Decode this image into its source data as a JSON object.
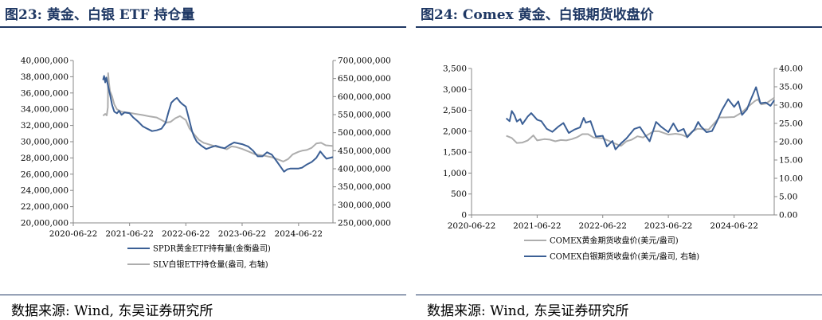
{
  "colors": {
    "title": "#1f3864",
    "gold": "#adadad",
    "silver": "#3b5f95"
  },
  "left": {
    "title": "图23: 黄金、白银 ETF 持仓量",
    "source": "数据来源: Wind, 东吴证券研究所",
    "legend": [
      "SPDR黄金ETF持有量(金衡盎司)",
      "SLV白银ETF持仓量(盎司, 右轴)"
    ],
    "x_ticks": [
      "2020-06-22",
      "2021-06-22",
      "2022-06-22",
      "2023-06-22",
      "2024-06-22"
    ],
    "y_ticks": [
      "20,000,000",
      "22,000,000",
      "24,000,000",
      "26,000,000",
      "28,000,000",
      "30,000,000",
      "32,000,000",
      "34,000,000",
      "36,000,000",
      "38,000,000",
      "40,000,000"
    ],
    "y2_ticks": [
      "250,000,000",
      "300,000,000",
      "350,000,000",
      "400,000,000",
      "450,000,000",
      "500,000,000",
      "550,000,000",
      "600,000,000",
      "650,000,000",
      "700,000,000"
    ]
  },
  "right": {
    "title": "图24: Comex 黄金、白银期货收盘价",
    "source": "数据来源: Wind, 东吴证券研究所",
    "legend": [
      "COMEX黄金期货收盘价(美元/盎司)",
      "COMEX白银期货收盘价(美元/盎司, 右轴)"
    ],
    "x_ticks": [
      "2020-06-22",
      "2021-06-22",
      "2022-06-22",
      "2023-06-22",
      "2024-06-22"
    ],
    "y_ticks": [
      "0",
      "500",
      "1,000",
      "1,500",
      "2,000",
      "2,500",
      "3,000",
      "3,500"
    ],
    "y2_ticks": [
      "0.00",
      "5.00",
      "10.00",
      "15.00",
      "20.00",
      "25.00",
      "30.00",
      "35.00",
      "40.00"
    ]
  },
  "chart_data": [
    {
      "type": "line",
      "title": "图23: 黄金、白银 ETF 持仓量",
      "x_range": [
        "2020-06-22",
        "2025-01-31"
      ],
      "ylim": [
        20000000,
        40000000
      ],
      "y2lim": [
        250000000,
        700000000
      ],
      "series": [
        {
          "name": "SPDR黄金ETF持有量(金衡盎司)",
          "axis": "left",
          "color": "#3b5f95",
          "points": [
            [
              "2021-01-01",
              37600000
            ],
            [
              "2021-01-08",
              38100000
            ],
            [
              "2021-01-15",
              37300000
            ],
            [
              "2021-01-22",
              37900000
            ],
            [
              "2021-02-01",
              37000000
            ],
            [
              "2021-02-15",
              35800000
            ],
            [
              "2021-03-01",
              34500000
            ],
            [
              "2021-03-15",
              33700000
            ],
            [
              "2021-04-01",
              33500000
            ],
            [
              "2021-04-15",
              33800000
            ],
            [
              "2021-05-01",
              33300000
            ],
            [
              "2021-05-20",
              33600000
            ],
            [
              "2021-06-22",
              33500000
            ],
            [
              "2021-07-15",
              33000000
            ],
            [
              "2021-08-15",
              32500000
            ],
            [
              "2021-09-15",
              31900000
            ],
            [
              "2021-10-15",
              31600000
            ],
            [
              "2021-11-15",
              31300000
            ],
            [
              "2021-12-15",
              31400000
            ],
            [
              "2022-01-15",
              31600000
            ],
            [
              "2022-02-10",
              32300000
            ],
            [
              "2022-03-01",
              33600000
            ],
            [
              "2022-03-20",
              34800000
            ],
            [
              "2022-04-10",
              35200000
            ],
            [
              "2022-04-25",
              35400000
            ],
            [
              "2022-05-15",
              34900000
            ],
            [
              "2022-06-01",
              34600000
            ],
            [
              "2022-06-22",
              34300000
            ],
            [
              "2022-07-15",
              32600000
            ],
            [
              "2022-08-01",
              31300000
            ],
            [
              "2022-08-15",
              30600000
            ],
            [
              "2022-09-01",
              30000000
            ],
            [
              "2022-10-01",
              29500000
            ],
            [
              "2022-11-01",
              29100000
            ],
            [
              "2022-12-01",
              29300000
            ],
            [
              "2023-01-01",
              29500000
            ],
            [
              "2023-02-01",
              29300000
            ],
            [
              "2023-03-01",
              29200000
            ],
            [
              "2023-04-01",
              29600000
            ],
            [
              "2023-05-01",
              29900000
            ],
            [
              "2023-06-22",
              29700000
            ],
            [
              "2023-08-01",
              29400000
            ],
            [
              "2023-09-01",
              28900000
            ],
            [
              "2023-10-01",
              28200000
            ],
            [
              "2023-11-01",
              28200000
            ],
            [
              "2023-12-01",
              28700000
            ],
            [
              "2024-01-01",
              28400000
            ],
            [
              "2024-02-01",
              27600000
            ],
            [
              "2024-03-01",
              26800000
            ],
            [
              "2024-03-20",
              26300000
            ],
            [
              "2024-04-10",
              26600000
            ],
            [
              "2024-05-01",
              26700000
            ],
            [
              "2024-06-22",
              26700000
            ],
            [
              "2024-07-15",
              26800000
            ],
            [
              "2024-08-15",
              27200000
            ],
            [
              "2024-09-15",
              27500000
            ],
            [
              "2024-10-15",
              28000000
            ],
            [
              "2024-11-10",
              28800000
            ],
            [
              "2024-12-01",
              28300000
            ],
            [
              "2024-12-20",
              27900000
            ],
            [
              "2025-01-31",
              28100000
            ]
          ]
        },
        {
          "name": "SLV白银ETF持仓量(盎司, 右轴)",
          "axis": "right",
          "color": "#adadad",
          "points": [
            [
              "2021-01-01",
              547000000
            ],
            [
              "2021-01-15",
              552000000
            ],
            [
              "2021-01-25",
              548000000
            ],
            [
              "2021-02-01",
              570000000
            ],
            [
              "2021-02-03",
              665000000
            ],
            [
              "2021-02-08",
              640000000
            ],
            [
              "2021-02-15",
              615000000
            ],
            [
              "2021-03-01",
              600000000
            ],
            [
              "2021-03-15",
              578000000
            ],
            [
              "2021-04-01",
              565000000
            ],
            [
              "2021-05-01",
              558000000
            ],
            [
              "2021-06-22",
              555000000
            ],
            [
              "2021-08-01",
              552000000
            ],
            [
              "2021-09-15",
              549000000
            ],
            [
              "2021-11-01",
              545000000
            ],
            [
              "2021-12-15",
              542000000
            ],
            [
              "2022-01-15",
              535000000
            ],
            [
              "2022-02-15",
              528000000
            ],
            [
              "2022-03-15",
              530000000
            ],
            [
              "2022-04-15",
              540000000
            ],
            [
              "2022-05-15",
              546000000
            ],
            [
              "2022-06-22",
              535000000
            ],
            [
              "2022-07-15",
              512000000
            ],
            [
              "2022-08-15",
              495000000
            ],
            [
              "2022-09-15",
              480000000
            ],
            [
              "2022-10-15",
              472000000
            ],
            [
              "2022-11-15",
              468000000
            ],
            [
              "2022-12-15",
              464000000
            ],
            [
              "2023-01-15",
              460000000
            ],
            [
              "2023-02-15",
              458000000
            ],
            [
              "2023-03-15",
              454000000
            ],
            [
              "2023-04-15",
              462000000
            ],
            [
              "2023-05-15",
              460000000
            ],
            [
              "2023-06-22",
              455000000
            ],
            [
              "2023-08-01",
              448000000
            ],
            [
              "2023-09-15",
              440000000
            ],
            [
              "2023-11-01",
              437000000
            ],
            [
              "2024-01-01",
              432000000
            ],
            [
              "2024-02-15",
              425000000
            ],
            [
              "2024-03-15",
              420000000
            ],
            [
              "2024-04-15",
              427000000
            ],
            [
              "2024-05-15",
              440000000
            ],
            [
              "2024-06-22",
              447000000
            ],
            [
              "2024-07-15",
              450000000
            ],
            [
              "2024-08-15",
              452000000
            ],
            [
              "2024-09-15",
              458000000
            ],
            [
              "2024-10-15",
              470000000
            ],
            [
              "2024-11-15",
              472000000
            ],
            [
              "2024-12-15",
              465000000
            ],
            [
              "2025-01-31",
              463000000
            ]
          ]
        }
      ]
    },
    {
      "type": "line",
      "title": "图24: Comex 黄金、白银期货收盘价",
      "x_range": [
        "2020-06-22",
        "2025-01-31"
      ],
      "ylim": [
        0,
        3500
      ],
      "y2lim": [
        0,
        40
      ],
      "series": [
        {
          "name": "COMEX黄金期货收盘价(美元/盎司)",
          "axis": "left",
          "color": "#adadad",
          "points": [
            [
              "2021-01-01",
              1890
            ],
            [
              "2021-02-01",
              1840
            ],
            [
              "2021-03-01",
              1720
            ],
            [
              "2021-04-01",
              1730
            ],
            [
              "2021-05-01",
              1780
            ],
            [
              "2021-06-01",
              1900
            ],
            [
              "2021-06-22",
              1780
            ],
            [
              "2021-08-01",
              1810
            ],
            [
              "2021-09-01",
              1800
            ],
            [
              "2021-10-01",
              1760
            ],
            [
              "2021-11-01",
              1790
            ],
            [
              "2021-12-01",
              1780
            ],
            [
              "2022-01-01",
              1810
            ],
            [
              "2022-02-01",
              1860
            ],
            [
              "2022-03-01",
              1930
            ],
            [
              "2022-04-01",
              1930
            ],
            [
              "2022-05-01",
              1850
            ],
            [
              "2022-06-22",
              1830
            ],
            [
              "2022-08-01",
              1760
            ],
            [
              "2022-09-01",
              1700
            ],
            [
              "2022-10-01",
              1650
            ],
            [
              "2022-11-01",
              1760
            ],
            [
              "2022-12-01",
              1800
            ],
            [
              "2023-01-01",
              1880
            ],
            [
              "2023-02-01",
              1850
            ],
            [
              "2023-03-01",
              1920
            ],
            [
              "2023-04-01",
              2000
            ],
            [
              "2023-05-01",
              2000
            ],
            [
              "2023-06-22",
              1920
            ],
            [
              "2023-08-01",
              1940
            ],
            [
              "2023-09-01",
              1920
            ],
            [
              "2023-10-01",
              1870
            ],
            [
              "2023-11-01",
              1990
            ],
            [
              "2023-12-01",
              2060
            ],
            [
              "2024-01-01",
              2050
            ],
            [
              "2024-02-01",
              2040
            ],
            [
              "2024-03-01",
              2180
            ],
            [
              "2024-04-01",
              2330
            ],
            [
              "2024-05-01",
              2330
            ],
            [
              "2024-06-22",
              2340
            ],
            [
              "2024-08-01",
              2440
            ],
            [
              "2024-09-01",
              2560
            ],
            [
              "2024-10-15",
              2720
            ],
            [
              "2024-11-01",
              2760
            ],
            [
              "2024-11-20",
              2640
            ],
            [
              "2024-12-15",
              2660
            ],
            [
              "2025-01-31",
              2800
            ]
          ]
        },
        {
          "name": "COMEX白银期货收盘价(美元/盎司, 右轴)",
          "axis": "right",
          "color": "#3b5f95",
          "points": [
            [
              "2021-01-01",
              26.4
            ],
            [
              "2021-01-20",
              25.6
            ],
            [
              "2021-02-01",
              28.4
            ],
            [
              "2021-02-15",
              27.3
            ],
            [
              "2021-03-01",
              25.5
            ],
            [
              "2021-03-20",
              26.2
            ],
            [
              "2021-04-01",
              24.8
            ],
            [
              "2021-05-01",
              26.9
            ],
            [
              "2021-05-20",
              27.8
            ],
            [
              "2021-06-22",
              26.0
            ],
            [
              "2021-07-15",
              25.6
            ],
            [
              "2021-08-15",
              23.5
            ],
            [
              "2021-09-15",
              22.7
            ],
            [
              "2021-10-15",
              24.0
            ],
            [
              "2021-11-15",
              25.1
            ],
            [
              "2021-12-15",
              22.4
            ],
            [
              "2022-01-15",
              23.3
            ],
            [
              "2022-02-15",
              23.9
            ],
            [
              "2022-03-08",
              26.5
            ],
            [
              "2022-03-20",
              25.2
            ],
            [
              "2022-04-15",
              25.6
            ],
            [
              "2022-05-15",
              21.4
            ],
            [
              "2022-06-22",
              21.6
            ],
            [
              "2022-07-15",
              18.7
            ],
            [
              "2022-08-15",
              20.2
            ],
            [
              "2022-09-01",
              17.9
            ],
            [
              "2022-10-01",
              19.5
            ],
            [
              "2022-11-01",
              20.9
            ],
            [
              "2022-12-15",
              23.5
            ],
            [
              "2023-01-15",
              24.0
            ],
            [
              "2023-02-15",
              21.7
            ],
            [
              "2023-03-10",
              20.1
            ],
            [
              "2023-04-15",
              25.4
            ],
            [
              "2023-05-15",
              24.0
            ],
            [
              "2023-06-22",
              22.6
            ],
            [
              "2023-07-20",
              25.0
            ],
            [
              "2023-08-15",
              22.8
            ],
            [
              "2023-09-15",
              23.5
            ],
            [
              "2023-10-05",
              21.2
            ],
            [
              "2023-11-15",
              23.4
            ],
            [
              "2023-12-05",
              25.4
            ],
            [
              "2023-12-20",
              24.2
            ],
            [
              "2024-01-20",
              22.6
            ],
            [
              "2024-02-20",
              22.9
            ],
            [
              "2024-03-15",
              25.2
            ],
            [
              "2024-04-15",
              28.6
            ],
            [
              "2024-05-20",
              31.6
            ],
            [
              "2024-06-22",
              29.5
            ],
            [
              "2024-07-15",
              31.0
            ],
            [
              "2024-08-05",
              27.3
            ],
            [
              "2024-09-01",
              28.8
            ],
            [
              "2024-09-20",
              31.2
            ],
            [
              "2024-10-22",
              34.9
            ],
            [
              "2024-11-15",
              30.5
            ],
            [
              "2024-12-15",
              30.7
            ],
            [
              "2025-01-10",
              29.8
            ],
            [
              "2025-01-31",
              31.3
            ]
          ]
        }
      ]
    }
  ]
}
